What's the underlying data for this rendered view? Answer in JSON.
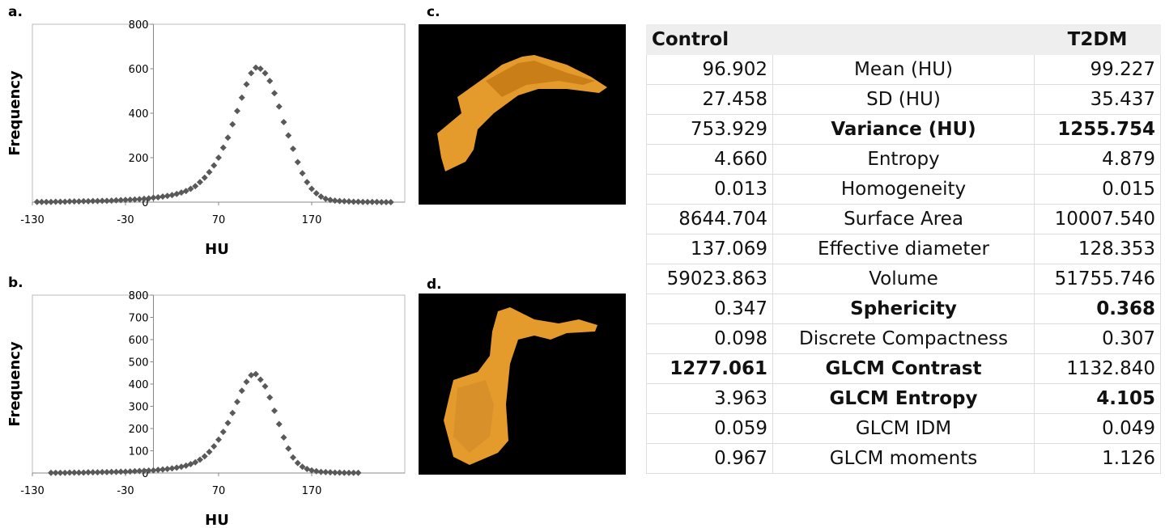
{
  "chart_data": [
    {
      "type": "scatter",
      "label": "a.",
      "xlabel": "HU",
      "ylabel": "Frequency",
      "color": "#595959",
      "xlim": [
        -130,
        270
      ],
      "ylim": [
        0,
        800
      ],
      "xticks": [
        -130,
        -30,
        70,
        170
      ],
      "yticks": [
        0,
        200,
        400,
        600,
        800
      ],
      "y_axis_at": 0,
      "x": [
        -125,
        -120,
        -115,
        -110,
        -105,
        -100,
        -95,
        -90,
        -85,
        -80,
        -75,
        -70,
        -65,
        -60,
        -55,
        -50,
        -45,
        -40,
        -35,
        -30,
        -25,
        -20,
        -15,
        -10,
        -5,
        0,
        5,
        10,
        15,
        20,
        25,
        30,
        35,
        40,
        45,
        50,
        55,
        60,
        65,
        70,
        75,
        80,
        85,
        90,
        95,
        100,
        105,
        110,
        115,
        120,
        125,
        130,
        135,
        140,
        145,
        150,
        155,
        160,
        165,
        170,
        175,
        180,
        185,
        190,
        195,
        200,
        205,
        210,
        215,
        220,
        225,
        230,
        235,
        240,
        245,
        250,
        255
      ],
      "values": [
        1,
        1,
        1,
        1,
        2,
        2,
        2,
        3,
        3,
        3,
        4,
        4,
        5,
        5,
        6,
        6,
        7,
        8,
        9,
        10,
        11,
        12,
        13,
        15,
        17,
        20,
        22,
        25,
        28,
        32,
        37,
        43,
        50,
        60,
        72,
        90,
        110,
        135,
        165,
        200,
        245,
        290,
        350,
        410,
        470,
        530,
        580,
        605,
        600,
        580,
        545,
        490,
        430,
        360,
        300,
        240,
        180,
        130,
        90,
        60,
        40,
        25,
        15,
        10,
        7,
        5,
        4,
        3,
        2,
        2,
        1,
        1,
        1,
        1,
        0,
        0,
        0
      ]
    },
    {
      "type": "scatter",
      "label": "b.",
      "xlabel": "HU",
      "ylabel": "Frequency",
      "color": "#595959",
      "xlim": [
        -130,
        270
      ],
      "ylim": [
        0,
        800
      ],
      "xticks": [
        -130,
        -30,
        70,
        170
      ],
      "yticks": [
        0,
        100,
        200,
        300,
        400,
        500,
        600,
        700,
        800
      ],
      "y_axis_at": 0,
      "x": [
        -110,
        -105,
        -100,
        -95,
        -90,
        -85,
        -80,
        -75,
        -70,
        -65,
        -60,
        -55,
        -50,
        -45,
        -40,
        -35,
        -30,
        -25,
        -20,
        -15,
        -10,
        -5,
        0,
        5,
        10,
        15,
        20,
        25,
        30,
        35,
        40,
        45,
        50,
        55,
        60,
        65,
        70,
        75,
        80,
        85,
        90,
        95,
        100,
        105,
        110,
        115,
        120,
        125,
        130,
        135,
        140,
        145,
        150,
        155,
        160,
        165,
        170,
        175,
        180,
        185,
        190,
        195,
        200,
        205,
        210,
        215,
        220
      ],
      "values": [
        1,
        1,
        1,
        1,
        2,
        2,
        2,
        2,
        3,
        3,
        3,
        4,
        4,
        5,
        5,
        6,
        6,
        7,
        8,
        9,
        10,
        11,
        12,
        14,
        16,
        18,
        21,
        24,
        28,
        33,
        40,
        48,
        60,
        75,
        95,
        120,
        150,
        185,
        225,
        270,
        320,
        370,
        410,
        440,
        445,
        420,
        390,
        340,
        280,
        220,
        160,
        110,
        70,
        45,
        28,
        18,
        12,
        8,
        5,
        4,
        3,
        2,
        2,
        1,
        1,
        1,
        1
      ]
    }
  ],
  "images": [
    {
      "label": "c."
    },
    {
      "label": "d."
    }
  ],
  "table": {
    "header": [
      "Control",
      "T2DM"
    ],
    "rows": [
      {
        "cells": [
          "96.902",
          "Mean (HU)",
          "99.227"
        ],
        "bold": []
      },
      {
        "cells": [
          "27.458",
          "SD (HU)",
          "35.437"
        ],
        "bold": []
      },
      {
        "cells": [
          "753.929",
          "Variance (HU)",
          "1255.754"
        ],
        "bold": [
          1,
          2
        ]
      },
      {
        "cells": [
          "4.660",
          "Entropy",
          "4.879"
        ],
        "bold": []
      },
      {
        "cells": [
          "0.013",
          "Homogeneity",
          "0.015"
        ],
        "bold": []
      },
      {
        "cells": [
          "8644.704",
          "Surface Area",
          "10007.540"
        ],
        "bold": []
      },
      {
        "cells": [
          "137.069",
          "Effective diameter",
          "128.353"
        ],
        "bold": []
      },
      {
        "cells": [
          "59023.863",
          "Volume",
          "51755.746"
        ],
        "bold": []
      },
      {
        "cells": [
          "0.347",
          "Sphericity",
          "0.368"
        ],
        "bold": [
          1,
          2
        ]
      },
      {
        "cells": [
          "0.098",
          "Discrete Compactness",
          "0.307"
        ],
        "bold": []
      },
      {
        "cells": [
          "1277.061",
          "GLCM Contrast",
          "1132.840"
        ],
        "bold": [
          0,
          1
        ]
      },
      {
        "cells": [
          "3.963",
          "GLCM Entropy",
          "4.105"
        ],
        "bold": [
          1,
          2
        ]
      },
      {
        "cells": [
          "0.059",
          "GLCM IDM",
          "0.049"
        ],
        "bold": []
      },
      {
        "cells": [
          "0.967",
          "GLCM moments",
          "1.126"
        ],
        "bold": []
      }
    ]
  }
}
